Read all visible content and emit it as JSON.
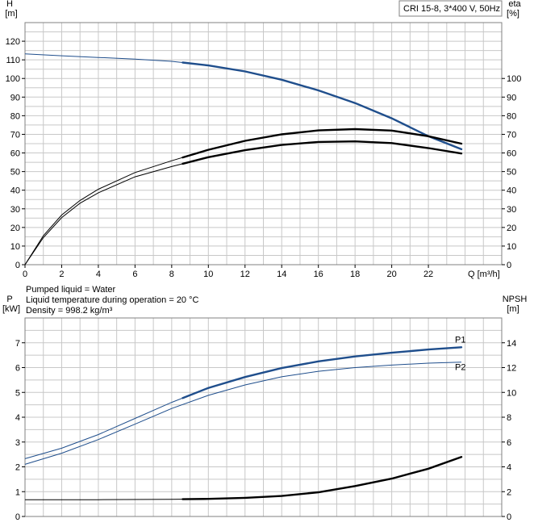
{
  "legend_box": "CRI 15-8, 3*400 V, 50Hz",
  "info": {
    "pumped_liquid": "Pumped liquid = Water",
    "temperature": "Liquid temperature during operation = 20 °C",
    "density": "Density = 998.2 kg/m³"
  },
  "colors": {
    "blue": "#1f4e8c",
    "black": "#000000",
    "grid": "#c8c8c8"
  },
  "chart_data": [
    {
      "type": "line",
      "title": "",
      "xlabel": "Q [m³/h]",
      "ylabel_left": [
        "H",
        "[m]"
      ],
      "ylabel_right": [
        "eta",
        "[%]"
      ],
      "xlim": [
        0,
        26
      ],
      "ylim_left": [
        0,
        130
      ],
      "ylim_right": [
        0,
        130
      ],
      "x_ticks": [
        0,
        2,
        4,
        6,
        8,
        10,
        12,
        14,
        16,
        18,
        20,
        22
      ],
      "y_ticks_left": [
        0,
        10,
        20,
        30,
        40,
        50,
        60,
        70,
        80,
        90,
        100,
        110,
        120
      ],
      "y_ticks_right": [
        0,
        10,
        20,
        30,
        40,
        50,
        60,
        70,
        80,
        90,
        100
      ],
      "grid": true,
      "series": [
        {
          "name": "",
          "axis": "left",
          "color": "blue",
          "x_thick_from": 8.6,
          "x": [
            0,
            2,
            4,
            6,
            8,
            10,
            12,
            14,
            16,
            18,
            20,
            22,
            23.8
          ],
          "y": [
            113.2,
            112.2,
            111.3,
            110.4,
            109.2,
            107,
            103.8,
            99.3,
            93.6,
            86.8,
            78.6,
            69,
            62
          ]
        },
        {
          "name": "",
          "axis": "right",
          "color": "black",
          "x_thick_from": 8.6,
          "x": [
            0,
            1,
            2,
            3,
            4,
            6,
            8,
            10,
            12,
            14,
            16,
            18,
            20,
            22,
            23.8
          ],
          "y": [
            0,
            15.5,
            26.7,
            34.5,
            40.5,
            49.5,
            55.8,
            61.7,
            66.5,
            70,
            72.1,
            72.8,
            72,
            69,
            65
          ]
        },
        {
          "name": "",
          "axis": "right",
          "color": "black",
          "x_thick_from": 8.6,
          "x": [
            0,
            1,
            2,
            3,
            4,
            6,
            8,
            10,
            12,
            14,
            16,
            18,
            20,
            22,
            23.8
          ],
          "y": [
            0,
            14.5,
            25.3,
            33,
            38.6,
            47.2,
            52.7,
            57.7,
            61.5,
            64.3,
            65.9,
            66.2,
            65.3,
            62.6,
            59.7
          ]
        }
      ]
    },
    {
      "type": "line",
      "title": "",
      "xlabel": "",
      "ylabel_left": [
        "P",
        "[kW]"
      ],
      "ylabel_right": [
        "NPSH",
        "[m]"
      ],
      "xlim": [
        0,
        26
      ],
      "ylim_left": [
        0,
        8
      ],
      "ylim_right": [
        0,
        16
      ],
      "y_ticks_left": [
        0,
        1,
        2,
        3,
        4,
        5,
        6,
        7
      ],
      "y_ticks_right": [
        0,
        2,
        4,
        6,
        8,
        10,
        12,
        14
      ],
      "grid": true,
      "series": [
        {
          "name": "P1",
          "axis": "left",
          "color": "blue",
          "x_thick_from": 8.6,
          "x": [
            0,
            2,
            4,
            6,
            8,
            10,
            12,
            14,
            16,
            18,
            20,
            22,
            23.8
          ],
          "y": [
            2.33,
            2.75,
            3.3,
            3.95,
            4.6,
            5.18,
            5.62,
            5.98,
            6.25,
            6.45,
            6.6,
            6.73,
            6.82
          ]
        },
        {
          "name": "P2",
          "axis": "left",
          "color": "blue",
          "x_thick_from": 30,
          "x": [
            0,
            2,
            4,
            6,
            8,
            10,
            12,
            14,
            16,
            18,
            20,
            22,
            23.8
          ],
          "y": [
            2.1,
            2.55,
            3.1,
            3.72,
            4.35,
            4.88,
            5.3,
            5.63,
            5.85,
            6.0,
            6.1,
            6.18,
            6.22
          ]
        },
        {
          "name": "",
          "axis": "right",
          "color": "black",
          "x_thick_from": 8.6,
          "x": [
            0,
            4,
            8,
            10,
            12,
            14,
            16,
            18,
            20,
            22,
            23.8
          ],
          "y": [
            1.35,
            1.35,
            1.38,
            1.42,
            1.5,
            1.65,
            1.95,
            2.45,
            3.05,
            3.85,
            4.8
          ]
        }
      ]
    }
  ]
}
